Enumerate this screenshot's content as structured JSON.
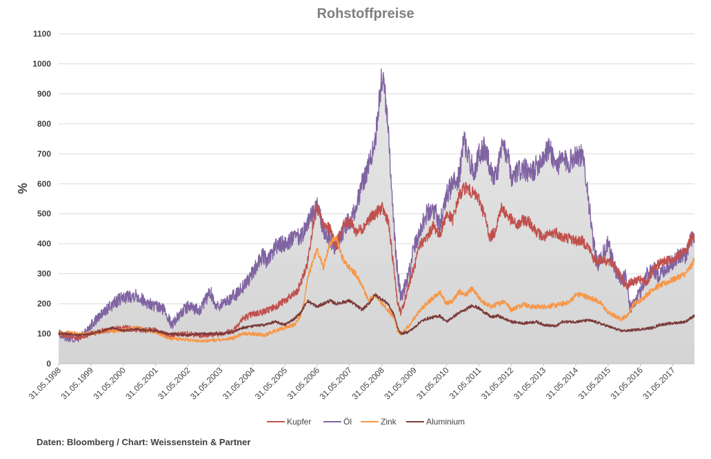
{
  "source_note": "Daten: Bloomberg / Chart: Weissenstein & Partner",
  "chart_data": {
    "type": "line",
    "title": "Rohstoffpreise",
    "xlabel": "",
    "ylabel": "%",
    "ylim": [
      0,
      1100
    ],
    "yticks": [
      0,
      100,
      200,
      300,
      400,
      500,
      600,
      700,
      800,
      900,
      1000,
      1100
    ],
    "xlim": [
      1998.41,
      2018.08
    ],
    "xtick_labels": [
      "31.05.1998",
      "31.05.1999",
      "31.05.2000",
      "31.05.2001",
      "31.05.2002",
      "31.05.2003",
      "31.05.2004",
      "31.05.2005",
      "31.05.2006",
      "31.05.2007",
      "31.05.2008",
      "31.05.2009",
      "31.05.2010",
      "31.05.2011",
      "31.05.2012",
      "31.05.2013",
      "31.05.2014",
      "31.05.2015",
      "31.05.2016",
      "31.05.2017"
    ],
    "grid": true,
    "legend_position": "bottom",
    "area_series": "Öl",
    "series": [
      {
        "name": "Kupfer",
        "color": "#c0504d",
        "x": [
          1998.41,
          1998.7,
          1999.0,
          1999.41,
          1999.8,
          2000.41,
          2000.8,
          2001.41,
          2001.8,
          2002.41,
          2002.8,
          2003.41,
          2003.8,
          2004.1,
          2004.41,
          2004.8,
          2005.1,
          2005.41,
          2005.8,
          2006.1,
          2006.3,
          2006.41,
          2006.6,
          2006.8,
          2007.0,
          2007.2,
          2007.41,
          2007.6,
          2007.8,
          2008.0,
          2008.2,
          2008.41,
          2008.6,
          2008.8,
          2008.9,
          2009.0,
          2009.1,
          2009.25,
          2009.41,
          2009.6,
          2009.8,
          2010.0,
          2010.2,
          2010.41,
          2010.6,
          2010.8,
          2011.0,
          2011.1,
          2011.41,
          2011.6,
          2011.75,
          2011.9,
          2012.1,
          2012.41,
          2012.6,
          2012.8,
          2013.0,
          2013.2,
          2013.41,
          2013.6,
          2013.8,
          2014.0,
          2014.2,
          2014.41,
          2014.6,
          2014.8,
          2015.0,
          2015.2,
          2015.41,
          2015.6,
          2015.8,
          2015.95,
          2016.1,
          2016.41,
          2016.6,
          2016.8,
          2016.95,
          2017.1,
          2017.41,
          2017.6,
          2017.8,
          2018.0,
          2018.08
        ],
        "values": [
          100,
          95,
          85,
          100,
          110,
          120,
          115,
          110,
          95,
          100,
          95,
          100,
          110,
          150,
          165,
          175,
          190,
          210,
          240,
          330,
          480,
          520,
          460,
          450,
          390,
          460,
          480,
          440,
          450,
          480,
          500,
          520,
          480,
          300,
          200,
          170,
          200,
          270,
          320,
          400,
          420,
          460,
          430,
          500,
          480,
          560,
          590,
          580,
          550,
          490,
          420,
          440,
          520,
          480,
          460,
          480,
          470,
          440,
          420,
          430,
          440,
          420,
          420,
          410,
          410,
          390,
          340,
          350,
          340,
          330,
          290,
          260,
          270,
          280,
          270,
          310,
          330,
          340,
          350,
          360,
          380,
          420,
          420
        ]
      },
      {
        "name": "Öl",
        "color": "#8064a2",
        "x": [
          1998.41,
          1998.6,
          1998.9,
          1999.1,
          1999.41,
          1999.8,
          2000.1,
          2000.41,
          2000.8,
          2001.2,
          2001.41,
          2001.7,
          2001.9,
          2002.2,
          2002.41,
          2002.8,
          2003.1,
          2003.3,
          2003.6,
          2003.9,
          2004.2,
          2004.41,
          2004.7,
          2004.9,
          2005.1,
          2005.41,
          2005.7,
          2005.9,
          2006.1,
          2006.41,
          2006.6,
          2006.8,
          2006.95,
          2007.1,
          2007.41,
          2007.6,
          2007.8,
          2008.0,
          2008.2,
          2008.41,
          2008.5,
          2008.6,
          2008.75,
          2008.9,
          2009.0,
          2009.1,
          2009.25,
          2009.41,
          2009.6,
          2009.8,
          2010.0,
          2010.2,
          2010.41,
          2010.6,
          2010.8,
          2010.95,
          2011.1,
          2011.3,
          2011.41,
          2011.6,
          2011.8,
          2011.95,
          2012.1,
          2012.3,
          2012.41,
          2012.6,
          2012.8,
          2013.0,
          2013.2,
          2013.41,
          2013.6,
          2013.8,
          2014.0,
          2014.2,
          2014.41,
          2014.6,
          2014.7,
          2014.8,
          2014.95,
          2015.1,
          2015.41,
          2015.6,
          2015.8,
          2015.95,
          2016.1,
          2016.41,
          2016.6,
          2016.8,
          2016.95,
          2017.1,
          2017.41,
          2017.6,
          2017.8,
          2018.0,
          2018.08
        ],
        "values": [
          100,
          90,
          80,
          90,
          130,
          170,
          200,
          220,
          230,
          200,
          190,
          180,
          130,
          170,
          190,
          180,
          240,
          190,
          210,
          230,
          270,
          300,
          360,
          340,
          390,
          400,
          420,
          420,
          470,
          520,
          450,
          420,
          390,
          420,
          480,
          520,
          600,
          660,
          740,
          960,
          900,
          800,
          500,
          300,
          220,
          250,
          300,
          390,
          450,
          500,
          520,
          470,
          560,
          600,
          620,
          750,
          680,
          640,
          700,
          720,
          640,
          620,
          720,
          700,
          610,
          640,
          650,
          630,
          660,
          690,
          720,
          660,
          680,
          670,
          700,
          690,
          650,
          550,
          400,
          330,
          400,
          320,
          280,
          300,
          180,
          240,
          300,
          320,
          290,
          310,
          340,
          360,
          360,
          420,
          410
        ]
      },
      {
        "name": "Zink",
        "color": "#f79646",
        "x": [
          1998.41,
          1998.7,
          1999.0,
          1999.41,
          1999.8,
          2000.41,
          2000.8,
          2001.41,
          2001.8,
          2002.41,
          2002.8,
          2003.41,
          2003.8,
          2004.1,
          2004.41,
          2004.8,
          2005.1,
          2005.41,
          2005.7,
          2005.9,
          2006.0,
          2006.1,
          2006.3,
          2006.41,
          2006.6,
          2006.8,
          2007.0,
          2007.2,
          2007.41,
          2007.6,
          2007.8,
          2008.0,
          2008.2,
          2008.41,
          2008.6,
          2008.8,
          2008.9,
          2009.0,
          2009.2,
          2009.41,
          2009.6,
          2009.8,
          2010.0,
          2010.2,
          2010.41,
          2010.6,
          2010.8,
          2011.0,
          2011.2,
          2011.41,
          2011.6,
          2011.8,
          2012.0,
          2012.2,
          2012.41,
          2012.6,
          2012.8,
          2013.0,
          2013.41,
          2013.8,
          2014.2,
          2014.41,
          2014.6,
          2014.8,
          2015.0,
          2015.2,
          2015.41,
          2015.6,
          2015.8,
          2016.0,
          2016.2,
          2016.41,
          2016.6,
          2016.8,
          2017.0,
          2017.2,
          2017.41,
          2017.6,
          2017.8,
          2018.0,
          2018.08
        ],
        "values": [
          100,
          105,
          100,
          100,
          110,
          110,
          120,
          105,
          85,
          80,
          75,
          80,
          85,
          100,
          100,
          95,
          110,
          120,
          130,
          160,
          200,
          280,
          350,
          380,
          320,
          400,
          420,
          350,
          320,
          300,
          260,
          210,
          230,
          200,
          180,
          150,
          110,
          100,
          120,
          150,
          180,
          200,
          220,
          240,
          200,
          210,
          240,
          230,
          250,
          220,
          200,
          190,
          200,
          210,
          180,
          190,
          200,
          190,
          190,
          195,
          205,
          230,
          230,
          220,
          215,
          200,
          170,
          160,
          150,
          160,
          200,
          210,
          230,
          250,
          260,
          270,
          280,
          290,
          300,
          330,
          350
        ]
      },
      {
        "name": "Aluminium",
        "color": "#7b3a3a",
        "x": [
          1998.41,
          1998.7,
          1999.0,
          1999.41,
          1999.8,
          2000.1,
          2000.41,
          2000.8,
          2001.41,
          2001.8,
          2002.41,
          2002.8,
          2003.41,
          2003.8,
          2004.1,
          2004.41,
          2004.8,
          2005.1,
          2005.41,
          2005.7,
          2005.9,
          2006.1,
          2006.41,
          2006.6,
          2006.8,
          2007.0,
          2007.41,
          2007.8,
          2008.0,
          2008.2,
          2008.41,
          2008.6,
          2008.8,
          2008.9,
          2009.0,
          2009.2,
          2009.41,
          2009.6,
          2009.8,
          2010.0,
          2010.2,
          2010.41,
          2010.6,
          2010.8,
          2011.0,
          2011.2,
          2011.41,
          2011.6,
          2011.8,
          2012.0,
          2012.41,
          2012.8,
          2013.2,
          2013.41,
          2013.8,
          2014.0,
          2014.41,
          2014.8,
          2015.0,
          2015.41,
          2015.8,
          2016.0,
          2016.41,
          2016.8,
          2017.0,
          2017.41,
          2017.8,
          2018.0,
          2018.08
        ],
        "values": [
          100,
          100,
          95,
          100,
          110,
          120,
          110,
          115,
          110,
          100,
          95,
          100,
          100,
          105,
          120,
          125,
          130,
          140,
          130,
          150,
          170,
          210,
          190,
          200,
          210,
          200,
          210,
          180,
          200,
          230,
          215,
          200,
          160,
          120,
          100,
          105,
          120,
          140,
          150,
          155,
          160,
          140,
          155,
          170,
          180,
          195,
          185,
          170,
          155,
          160,
          140,
          135,
          140,
          130,
          125,
          140,
          140,
          145,
          140,
          125,
          110,
          110,
          115,
          120,
          130,
          135,
          140,
          155,
          160
        ]
      }
    ]
  }
}
